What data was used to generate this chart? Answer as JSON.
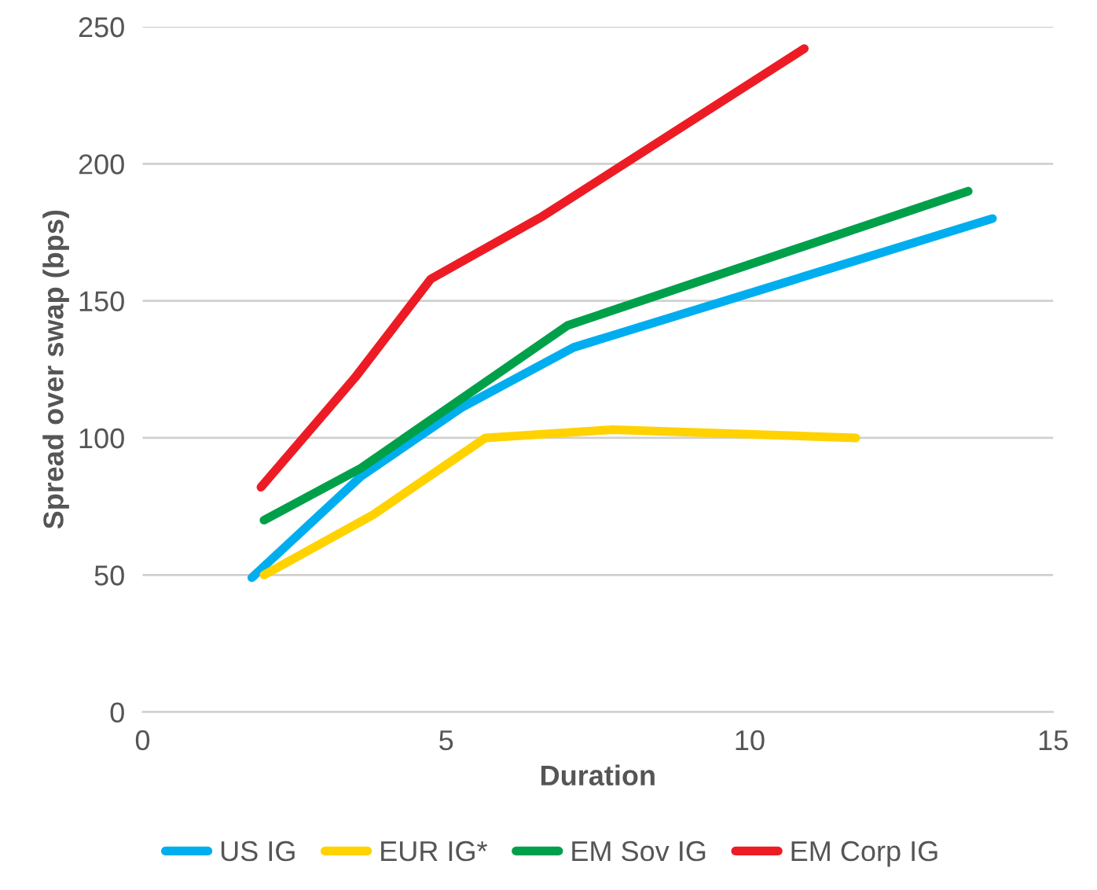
{
  "chart_data": {
    "type": "line",
    "xlabel": "Duration",
    "ylabel": "Spread over swap (bps)",
    "xlim": [
      0,
      15
    ],
    "xticks": [
      0,
      5,
      10,
      15
    ],
    "ylim": [
      0,
      250
    ],
    "yticks": [
      0,
      50,
      100,
      150,
      200,
      250
    ],
    "grid": "y",
    "legend": "bottom",
    "marker": "none",
    "line_style": "solid",
    "series": [
      {
        "name": "US IG",
        "color": "#00aeef",
        "x": [
          1.8,
          3.6,
          5.25,
          7.1,
          14.0
        ],
        "values": [
          49,
          86,
          111,
          133,
          180
        ]
      },
      {
        "name": "EUR IG*",
        "color": "#ffd200",
        "x": [
          2.0,
          3.8,
          5.65,
          7.75,
          11.75
        ],
        "values": [
          50,
          72,
          100,
          103,
          100
        ]
      },
      {
        "name": "EM Sov IG",
        "color": "#00a04a",
        "x": [
          2.0,
          3.6,
          7.0,
          13.6
        ],
        "values": [
          70,
          89,
          141,
          190
        ]
      },
      {
        "name": "EM Corp IG",
        "color": "#ed1c24",
        "x": [
          1.95,
          3.5,
          4.75,
          6.6,
          10.9
        ],
        "values": [
          82,
          122,
          158,
          181,
          242
        ]
      }
    ]
  }
}
